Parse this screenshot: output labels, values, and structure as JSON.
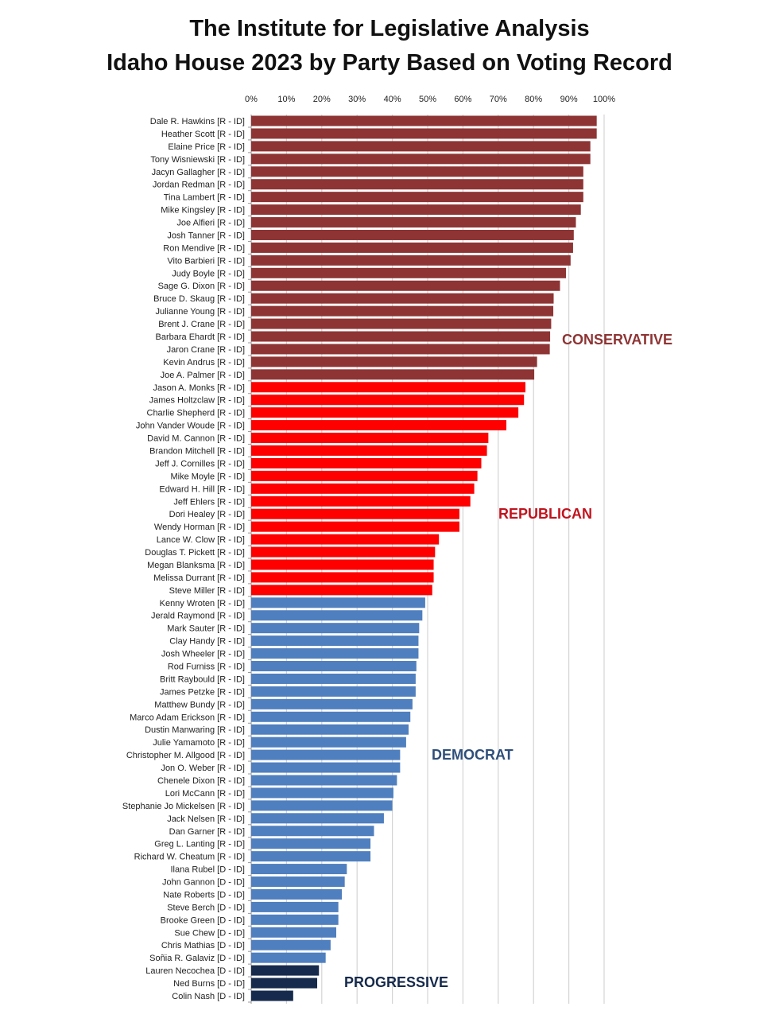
{
  "chart_data": {
    "type": "bar",
    "orientation": "horizontal",
    "title": "The Institute for Legislative Analysis",
    "subtitle": "Idaho House 2023 by Party Based on Voting Record",
    "xlabel": "",
    "ylabel": "",
    "xlim": [
      0,
      100
    ],
    "x_ticks": [
      "0%",
      "10%",
      "20%",
      "30%",
      "40%",
      "50%",
      "60%",
      "70%",
      "80%",
      "90%",
      "100%"
    ],
    "x_tick_position": "top",
    "grid": true,
    "categories": [
      "Dale R. Hawkins [R - ID]",
      "Heather Scott [R - ID]",
      "Elaine Price [R - ID]",
      "Tony Wisniewski [R - ID]",
      "Jacyn Gallagher [R - ID]",
      "Jordan Redman [R - ID]",
      "Tina Lambert [R - ID]",
      "Mike Kingsley [R - ID]",
      "Joe Alfieri [R - ID]",
      "Josh Tanner [R - ID]",
      "Ron Mendive [R - ID]",
      "Vito Barbieri [R - ID]",
      "Judy Boyle [R - ID]",
      "Sage G. Dixon [R - ID]",
      "Bruce D. Skaug [R - ID]",
      "Julianne Young [R - ID]",
      "Brent J. Crane [R - ID]",
      "Barbara Ehardt [R - ID]",
      "Jaron Crane [R - ID]",
      "Kevin Andrus [R - ID]",
      "Joe A. Palmer [R - ID]",
      "Jason A. Monks [R - ID]",
      "James Holtzclaw [R - ID]",
      "Charlie Shepherd [R - ID]",
      "John Vander Woude [R - ID]",
      "David M. Cannon [R - ID]",
      "Brandon Mitchell [R - ID]",
      "Jeff J. Cornilles [R - ID]",
      "Mike Moyle [R - ID]",
      "Edward H. Hill [R - ID]",
      "Jeff Ehlers [R - ID]",
      "Dori Healey [R - ID]",
      "Wendy Horman [R - ID]",
      "Lance W. Clow [R - ID]",
      "Douglas T. Pickett [R - ID]",
      "Megan Blanksma [R - ID]",
      "Melissa Durrant [R - ID]",
      "Steve Miller [R - ID]",
      "Kenny Wroten [R - ID]",
      "Jerald Raymond [R - ID]",
      "Mark Sauter [R - ID]",
      "Clay Handy [R - ID]",
      "Josh Wheeler [R - ID]",
      "Rod Furniss [R - ID]",
      "Britt Raybould [R - ID]",
      "James Petzke [R - ID]",
      "Matthew Bundy [R - ID]",
      "Marco Adam Erickson [R - ID]",
      "Dustin Manwaring [R - ID]",
      "Julie Yamamoto [R - ID]",
      "Christopher M. Allgood [R - ID]",
      "Jon O. Weber [R - ID]",
      "Chenele Dixon [R - ID]",
      "Lori McCann [R - ID]",
      "Stephanie Jo Mickelsen [R - ID]",
      "Jack Nelsen [R - ID]",
      "Dan Garner [R - ID]",
      "Greg L. Lanting [R - ID]",
      "Richard W. Cheatum [R - ID]",
      "Ilana Rubel [D - ID]",
      "John Gannon [D - ID]",
      "Nate Roberts [D - ID]",
      "Steve Berch [D - ID]",
      "Brooke Green [D - ID]",
      "Sue Chew [D - ID]",
      "Chris Mathias [D - ID]",
      "Soñia R. Galaviz [D - ID]",
      "Lauren Necochea [D - ID]",
      "Ned Burns [D - ID]",
      "Colin Nash [D - ID]"
    ],
    "values": [
      97.9,
      97.9,
      96.1,
      96.1,
      94.1,
      94.1,
      94.1,
      93.4,
      92.0,
      91.4,
      91.2,
      90.5,
      89.2,
      87.5,
      85.7,
      85.6,
      85.0,
      84.7,
      84.6,
      81.0,
      80.2,
      77.7,
      77.3,
      75.7,
      72.3,
      67.2,
      66.8,
      65.2,
      64.1,
      63.2,
      62.1,
      59.0,
      59.0,
      53.2,
      52.1,
      51.7,
      51.7,
      51.3,
      49.3,
      48.5,
      47.6,
      47.4,
      47.4,
      46.8,
      46.6,
      46.6,
      45.7,
      45.1,
      44.6,
      43.9,
      42.2,
      42.2,
      41.3,
      40.3,
      40.0,
      37.6,
      34.8,
      33.8,
      33.8,
      27.1,
      26.5,
      25.7,
      24.7,
      24.7,
      24.1,
      22.5,
      21.1,
      19.2,
      18.7,
      11.9
    ],
    "groups": [
      {
        "name": "CONSERVATIVE",
        "count": 21,
        "color": "#8e3434",
        "label_color": "#8e3434"
      },
      {
        "name": "REPUBLICAN",
        "count": 17,
        "color": "#fe0000",
        "label_color": "#c0141e"
      },
      {
        "name": "DEMOCRAT",
        "count": 29,
        "color": "#4f7fbf",
        "label_color": "#2f4f7a"
      },
      {
        "name": "PROGRESSIVE",
        "count": 3,
        "color": "#152a4c",
        "label_color": "#152a4c"
      }
    ]
  }
}
